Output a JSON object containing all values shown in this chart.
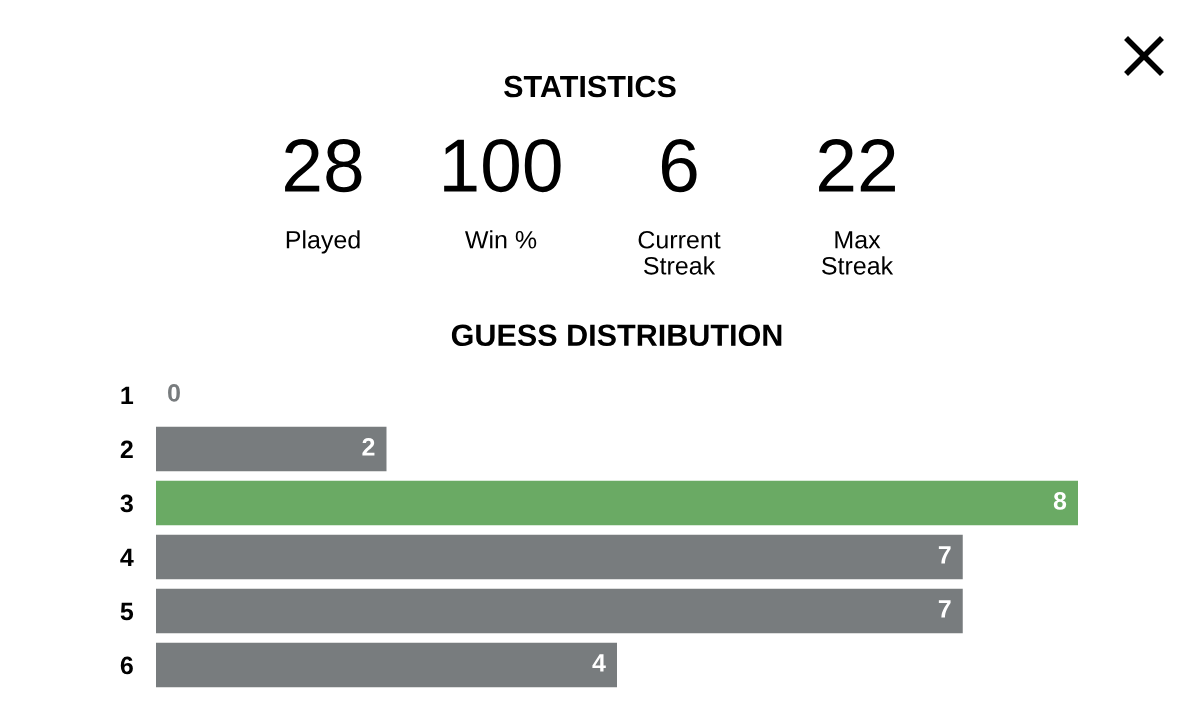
{
  "chart_data": [
    {
      "type": "other",
      "title": "STATISTICS",
      "annotations": [
        "28",
        "Played",
        "100",
        "Win %",
        "6",
        "Current Streak",
        "22",
        "Max Streak"
      ]
    },
    {
      "type": "bar",
      "orientation": "horizontal",
      "title": "GUESS DISTRIBUTION",
      "categories": [
        "1",
        "2",
        "3",
        "4",
        "5",
        "6"
      ],
      "values": [
        0,
        2,
        8,
        7,
        7,
        4
      ],
      "colors": [
        "#787c7e",
        "#787c7e",
        "#6aaa64",
        "#787c7e",
        "#787c7e",
        "#787c7e"
      ],
      "xlim": [
        0,
        8
      ],
      "data_labels": true,
      "grid": false,
      "legend": false
    }
  ]
}
